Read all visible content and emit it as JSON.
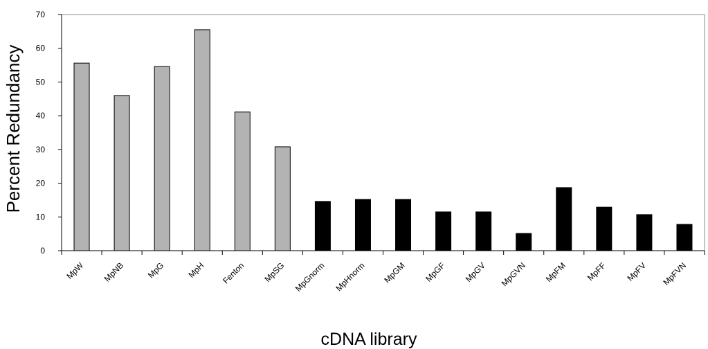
{
  "chart_data": {
    "type": "bar",
    "categories": [
      "MpW",
      "MpNB",
      "MpG",
      "MpH",
      "Fenton",
      "MpSG",
      "MpGnorm",
      "MpHnorm",
      "MpGM",
      "MpGF",
      "MpGV",
      "MpGVN",
      "MpFM",
      "MpFF",
      "MpFV",
      "MpFVN"
    ],
    "values": [
      55.6,
      46.0,
      54.6,
      65.5,
      41.1,
      30.8,
      14.6,
      15.2,
      15.2,
      11.5,
      11.5,
      5.1,
      18.7,
      12.9,
      10.7,
      7.8
    ],
    "colors": [
      "#b3b3b3",
      "#b3b3b3",
      "#b3b3b3",
      "#b3b3b3",
      "#b3b3b3",
      "#b3b3b3",
      "#000000",
      "#000000",
      "#000000",
      "#000000",
      "#000000",
      "#000000",
      "#000000",
      "#000000",
      "#000000",
      "#000000"
    ],
    "ylim": [
      0,
      70
    ],
    "yticks": [
      0,
      10,
      20,
      30,
      40,
      50,
      60,
      70
    ],
    "x_label": "cDNA library",
    "y_label": "Percent Redundancy"
  }
}
